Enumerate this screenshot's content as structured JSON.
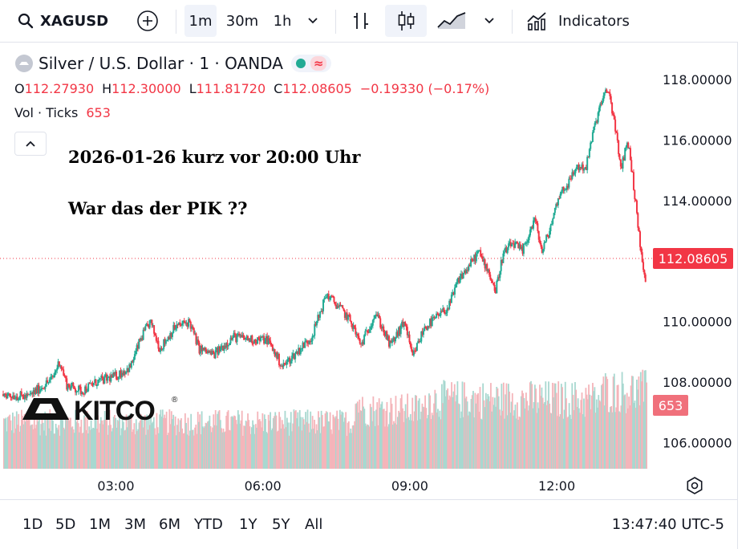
{
  "toolbar": {
    "symbol": "XAGUSD",
    "intervals": [
      "1m",
      "30m",
      "1h"
    ],
    "active_interval": "1m",
    "indicators_label": "Indicators"
  },
  "legend": {
    "title": "Silver / U.S. Dollar · 1 · OANDA",
    "ohlc": {
      "o_key": "O",
      "o": "112.27930",
      "h_key": "H",
      "h": "112.30000",
      "l_key": "L",
      "l": "111.81720",
      "c_key": "C",
      "c": "112.08605",
      "change": "−0.19330 (−0.17%)"
    },
    "volume_label": "Vol · Ticks",
    "volume_value": "653"
  },
  "annotation": {
    "line1": "2026-01-26   kurz vor 20:00 Uhr",
    "line2": "War das der PIK  ??"
  },
  "watermark": {
    "text": "KITCO",
    "mark": "®"
  },
  "price_labels": {
    "last_price": "112.08605",
    "last_volume": "653"
  },
  "bottom_bar": {
    "ranges": [
      "1D",
      "5D",
      "1M",
      "3M",
      "6M",
      "YTD",
      "1Y",
      "5Y",
      "All"
    ],
    "clock": "13:47:40 UTC-5"
  },
  "colors": {
    "up": "#22ab94",
    "down": "#f23645",
    "vol_up": "#a8d8d0",
    "vol_down": "#f4b5ba"
  },
  "chart_data": {
    "type": "candlestick",
    "y_ticks": [
      "118.00000",
      "116.00000",
      "114.00000",
      "110.00000",
      "108.00000",
      "106.00000"
    ],
    "x_ticks": [
      "03:00",
      "06:00",
      "09:00",
      "12:00"
    ],
    "ylim": [
      105.2,
      119.0
    ],
    "xlim_hours": [
      0.7,
      13.8
    ],
    "last_price": 112.08605,
    "price_path": [
      [
        0.7,
        107.6
      ],
      [
        1.2,
        107.5
      ],
      [
        1.7,
        108.1
      ],
      [
        1.85,
        108.7
      ],
      [
        2.0,
        107.9
      ],
      [
        2.3,
        107.7
      ],
      [
        2.6,
        108.0
      ],
      [
        3.0,
        108.2
      ],
      [
        3.3,
        108.5
      ],
      [
        3.5,
        109.4
      ],
      [
        3.7,
        110.0
      ],
      [
        3.9,
        109.1
      ],
      [
        4.2,
        109.8
      ],
      [
        4.5,
        110.0
      ],
      [
        4.7,
        109.1
      ],
      [
        5.0,
        108.9
      ],
      [
        5.4,
        109.5
      ],
      [
        5.8,
        109.4
      ],
      [
        6.1,
        109.4
      ],
      [
        6.4,
        108.5
      ],
      [
        6.7,
        109.0
      ],
      [
        7.0,
        109.5
      ],
      [
        7.3,
        110.9
      ],
      [
        7.6,
        110.4
      ],
      [
        7.8,
        110.0
      ],
      [
        8.0,
        109.2
      ],
      [
        8.3,
        110.3
      ],
      [
        8.6,
        109.2
      ],
      [
        8.9,
        110.0
      ],
      [
        9.05,
        108.8
      ],
      [
        9.3,
        109.8
      ],
      [
        9.6,
        110.2
      ],
      [
        9.8,
        110.5
      ],
      [
        10.0,
        111.4
      ],
      [
        10.2,
        111.8
      ],
      [
        10.4,
        112.3
      ],
      [
        10.6,
        111.7
      ],
      [
        10.75,
        111.0
      ],
      [
        10.9,
        112.2
      ],
      [
        11.1,
        112.6
      ],
      [
        11.3,
        112.3
      ],
      [
        11.55,
        113.4
      ],
      [
        11.7,
        112.3
      ],
      [
        11.85,
        113.0
      ],
      [
        12.05,
        114.2
      ],
      [
        12.25,
        114.6
      ],
      [
        12.4,
        115.1
      ],
      [
        12.6,
        115.1
      ],
      [
        12.75,
        116.3
      ],
      [
        12.9,
        117.2
      ],
      [
        13.05,
        117.7
      ],
      [
        13.2,
        116.4
      ],
      [
        13.3,
        115.0
      ],
      [
        13.45,
        116.0
      ],
      [
        13.55,
        114.8
      ],
      [
        13.65,
        113.3
      ],
      [
        13.75,
        111.9
      ],
      [
        13.85,
        110.8
      ],
      [
        13.95,
        112.5
      ],
      [
        14.0,
        112.1
      ]
    ]
  }
}
